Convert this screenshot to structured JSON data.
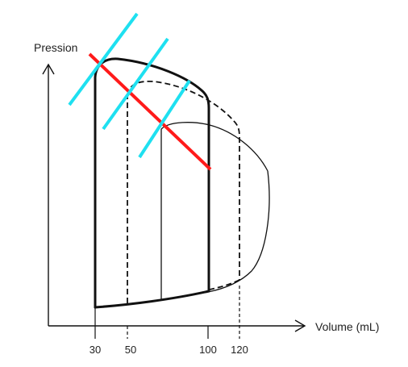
{
  "axes": {
    "y_label": "Pression",
    "x_label": "Volume (mL)",
    "x_ticks": [
      "30",
      "50",
      "100",
      "120"
    ]
  },
  "colors": {
    "ink": "#111111",
    "espvr_line": "#ff1a1a",
    "tangent_lines": "#1ee0f0",
    "background": "#ffffff"
  },
  "loops": [
    {
      "id": "loop-a",
      "style": "thick-solid"
    },
    {
      "id": "loop-b",
      "style": "dashed"
    },
    {
      "id": "loop-c",
      "style": "thin-solid"
    }
  ]
}
